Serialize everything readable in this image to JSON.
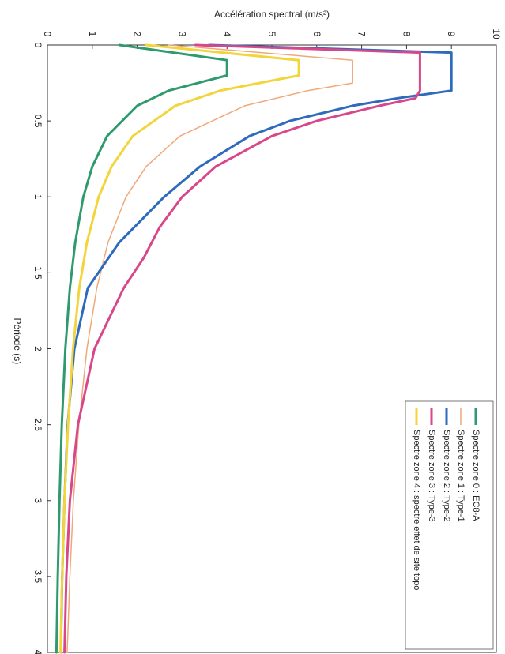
{
  "chart_data": {
    "type": "line",
    "title": "",
    "xlabel": "Période (s)",
    "ylabel": "Accélération spectral (m/s²)",
    "xlim": [
      0,
      4
    ],
    "ylim": [
      0,
      10
    ],
    "x_ticks": [
      0,
      0.5,
      1,
      1.5,
      2,
      2.5,
      3,
      3.5,
      4
    ],
    "x_tick_labels": [
      "0",
      "0.5",
      "1",
      "1.5",
      "2",
      "2.5",
      "3",
      "3.5",
      "4"
    ],
    "y_ticks": [
      0,
      1,
      2,
      3,
      4,
      5,
      6,
      7,
      8,
      9,
      10
    ],
    "y_tick_labels": [
      "0",
      "1",
      "2",
      "3",
      "4",
      "5",
      "6",
      "7",
      "8",
      "9",
      "10"
    ],
    "grid": false,
    "orientation": "rotated-90-clockwise",
    "legend_position": "bottom-right",
    "series": [
      {
        "name": "Spectre zone 0 : EC8-A",
        "color": "#2e9a6e",
        "x": [
          0,
          0.1,
          0.2,
          0.3,
          0.4,
          0.6,
          0.8,
          1.0,
          1.3,
          1.6,
          2.0,
          2.5,
          3.0,
          3.5,
          4.0
        ],
        "y": [
          1.6,
          4.0,
          4.0,
          2.7,
          2.0,
          1.33,
          1.0,
          0.8,
          0.62,
          0.5,
          0.4,
          0.32,
          0.27,
          0.23,
          0.2
        ]
      },
      {
        "name": "Spectre zone 1 : Type-1",
        "color": "#f0a878",
        "x": [
          0,
          0.1,
          0.2,
          0.25,
          0.3,
          0.4,
          0.6,
          0.8,
          1.0,
          1.3,
          1.6,
          2.0,
          2.5,
          3.0,
          3.5,
          4.0
        ],
        "y": [
          2.7,
          6.8,
          6.8,
          6.8,
          5.8,
          4.4,
          2.95,
          2.2,
          1.75,
          1.35,
          1.1,
          0.88,
          0.7,
          0.58,
          0.5,
          0.44
        ]
      },
      {
        "name": "Spectre zone 2 : Type-2",
        "color": "#2f6bbd",
        "x": [
          0,
          0.05,
          0.1,
          0.2,
          0.3,
          0.35,
          0.4,
          0.5,
          0.6,
          0.8,
          1.0,
          1.3,
          1.6,
          2.0,
          2.5,
          3.0,
          3.5,
          4.0
        ],
        "y": [
          3.6,
          9.0,
          9.0,
          9.0,
          9.0,
          7.8,
          6.8,
          5.4,
          4.5,
          3.4,
          2.6,
          1.6,
          0.9,
          0.6,
          0.45,
          0.38,
          0.33,
          0.3
        ]
      },
      {
        "name": "Spectre zone 3 : Type-3",
        "color": "#d8478a",
        "x": [
          0,
          0.05,
          0.1,
          0.2,
          0.3,
          0.35,
          0.4,
          0.5,
          0.6,
          0.8,
          1.0,
          1.2,
          1.4,
          1.6,
          2.0,
          2.5,
          3.0,
          3.5,
          4.0
        ],
        "y": [
          3.3,
          8.3,
          8.3,
          8.3,
          8.3,
          8.2,
          7.4,
          6.0,
          5.0,
          3.75,
          3.0,
          2.5,
          2.15,
          1.7,
          1.05,
          0.68,
          0.5,
          0.42,
          0.38
        ]
      },
      {
        "name": "Spectre zone 4 : spectre effet de site topo",
        "color": "#f2d43b",
        "x": [
          0,
          0.1,
          0.2,
          0.3,
          0.4,
          0.6,
          0.8,
          1.0,
          1.3,
          1.6,
          2.0,
          2.5,
          3.0,
          3.5,
          4.0
        ],
        "y": [
          2.2,
          5.6,
          5.6,
          3.85,
          2.85,
          1.9,
          1.43,
          1.14,
          0.88,
          0.71,
          0.57,
          0.46,
          0.38,
          0.33,
          0.29
        ]
      }
    ]
  }
}
